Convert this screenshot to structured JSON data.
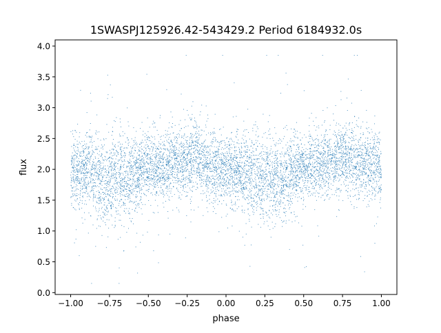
{
  "chart_data": {
    "type": "scatter",
    "title": "1SWASPJ125926.42-543429.2 Period 6184932.0s",
    "xlabel": "phase",
    "ylabel": "flux",
    "xlim": [
      -1.1,
      1.1
    ],
    "ylim": [
      -0.03,
      4.1
    ],
    "xticks": [
      -1.0,
      -0.75,
      -0.5,
      -0.25,
      0.0,
      0.25,
      0.5,
      0.75,
      1.0
    ],
    "xtick_labels": [
      "−1.00",
      "−0.75",
      "−0.50",
      "−0.25",
      "0.00",
      "0.25",
      "0.50",
      "0.75",
      "1.00"
    ],
    "yticks": [
      0.0,
      0.5,
      1.0,
      1.5,
      2.0,
      2.5,
      3.0,
      3.5,
      4.0
    ],
    "ytick_labels": [
      "0.0",
      "0.5",
      "1.0",
      "1.5",
      "2.0",
      "2.5",
      "3.0",
      "3.5",
      "4.0"
    ],
    "grid": false,
    "legend": "none",
    "marker_color": "#1f77b4",
    "phase_range": [
      -1.0,
      1.0
    ],
    "flux_profile": {
      "description": "phase-folded light curve, pattern repeats with period 1.0 in phase",
      "phase": [
        -1.0,
        -0.9,
        -0.8,
        -0.7,
        -0.6,
        -0.5,
        -0.4,
        -0.3,
        -0.2,
        -0.1,
        0.0,
        0.1,
        0.2,
        0.3,
        0.4,
        0.5,
        0.6,
        0.7,
        0.8,
        0.9,
        1.0
      ],
      "median_flux": [
        2.0,
        1.95,
        1.85,
        1.85,
        1.9,
        2.05,
        2.05,
        2.15,
        2.2,
        2.05,
        2.0,
        1.95,
        1.85,
        1.85,
        1.9,
        2.05,
        2.05,
        2.15,
        2.2,
        2.05,
        2.0
      ],
      "spread": [
        0.3,
        0.35,
        0.4,
        0.4,
        0.35,
        0.3,
        0.3,
        0.3,
        0.35,
        0.3,
        0.3,
        0.35,
        0.4,
        0.4,
        0.35,
        0.3,
        0.3,
        0.3,
        0.35,
        0.3,
        0.3
      ],
      "min_flux": 0.15,
      "max_flux": 3.85
    }
  }
}
